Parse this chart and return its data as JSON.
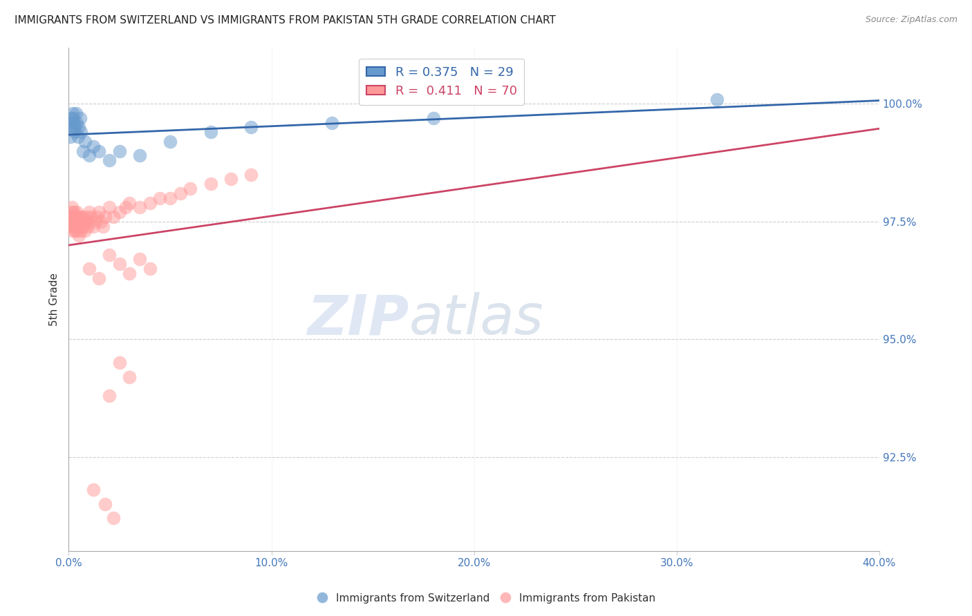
{
  "title": "IMMIGRANTS FROM SWITZERLAND VS IMMIGRANTS FROM PAKISTAN 5TH GRADE CORRELATION CHART",
  "source": "Source: ZipAtlas.com",
  "ylabel_left": "5th Grade",
  "x_tick_labels": [
    "0.0%",
    "10.0%",
    "20.0%",
    "30.0%",
    "40.0%"
  ],
  "x_tick_vals": [
    0.0,
    10.0,
    20.0,
    30.0,
    40.0
  ],
  "y_tick_labels": [
    "92.5%",
    "95.0%",
    "97.5%",
    "100.0%"
  ],
  "y_tick_vals": [
    92.5,
    95.0,
    97.5,
    100.0
  ],
  "xlim": [
    0.0,
    40.0
  ],
  "ylim": [
    90.5,
    101.2
  ],
  "legend_r_blue": "R = 0.375",
  "legend_n_blue": "N = 29",
  "legend_r_pink": "R =  0.411",
  "legend_n_pink": "N = 70",
  "color_blue": "#6699CC",
  "color_pink": "#FF9999",
  "color_blue_line": "#3366AA",
  "color_pink_line": "#CC4466",
  "color_axis_labels": "#4477BB",
  "color_title": "#222222",
  "switzerland_x": [
    0.08,
    0.12,
    0.15,
    0.18,
    0.2,
    0.22,
    0.25,
    0.28,
    0.3,
    0.35,
    0.4,
    0.45,
    0.5,
    0.55,
    0.6,
    0.7,
    0.8,
    1.0,
    1.2,
    1.5,
    2.0,
    2.5,
    3.5,
    5.0,
    7.0,
    9.0,
    13.0,
    18.0,
    32.0
  ],
  "switzerland_y": [
    99.3,
    99.6,
    99.7,
    99.8,
    99.5,
    99.7,
    99.6,
    99.4,
    99.5,
    99.8,
    99.6,
    99.3,
    99.5,
    99.7,
    99.4,
    99.0,
    99.2,
    98.9,
    99.1,
    99.0,
    98.8,
    99.0,
    98.9,
    99.2,
    99.4,
    99.5,
    99.6,
    99.7,
    100.1
  ],
  "pakistan_x": [
    0.08,
    0.1,
    0.12,
    0.15,
    0.15,
    0.18,
    0.2,
    0.22,
    0.25,
    0.25,
    0.28,
    0.3,
    0.3,
    0.32,
    0.35,
    0.38,
    0.4,
    0.4,
    0.42,
    0.45,
    0.5,
    0.5,
    0.55,
    0.6,
    0.6,
    0.65,
    0.7,
    0.7,
    0.75,
    0.8,
    0.85,
    0.9,
    0.95,
    1.0,
    1.0,
    1.1,
    1.2,
    1.3,
    1.4,
    1.5,
    1.6,
    1.7,
    1.8,
    2.0,
    2.2,
    2.5,
    2.8,
    3.0,
    3.5,
    4.0,
    4.5,
    5.0,
    5.5,
    6.0,
    7.0,
    8.0,
    9.0,
    1.0,
    1.5,
    2.0,
    2.5,
    3.0,
    3.5,
    4.0,
    2.0,
    2.5,
    3.0,
    1.2,
    1.8,
    2.2
  ],
  "pakistan_y": [
    97.6,
    97.5,
    97.7,
    97.4,
    97.8,
    97.6,
    97.3,
    97.5,
    97.7,
    97.4,
    97.6,
    97.3,
    97.5,
    97.4,
    97.6,
    97.3,
    97.5,
    97.7,
    97.4,
    97.6,
    97.2,
    97.5,
    97.4,
    97.6,
    97.3,
    97.5,
    97.4,
    97.6,
    97.5,
    97.3,
    97.5,
    97.6,
    97.4,
    97.7,
    97.5,
    97.6,
    97.4,
    97.5,
    97.6,
    97.7,
    97.5,
    97.4,
    97.6,
    97.8,
    97.6,
    97.7,
    97.8,
    97.9,
    97.8,
    97.9,
    98.0,
    98.0,
    98.1,
    98.2,
    98.3,
    98.4,
    98.5,
    96.5,
    96.3,
    96.8,
    96.6,
    96.4,
    96.7,
    96.5,
    93.8,
    94.5,
    94.2,
    91.8,
    91.5,
    91.2
  ]
}
